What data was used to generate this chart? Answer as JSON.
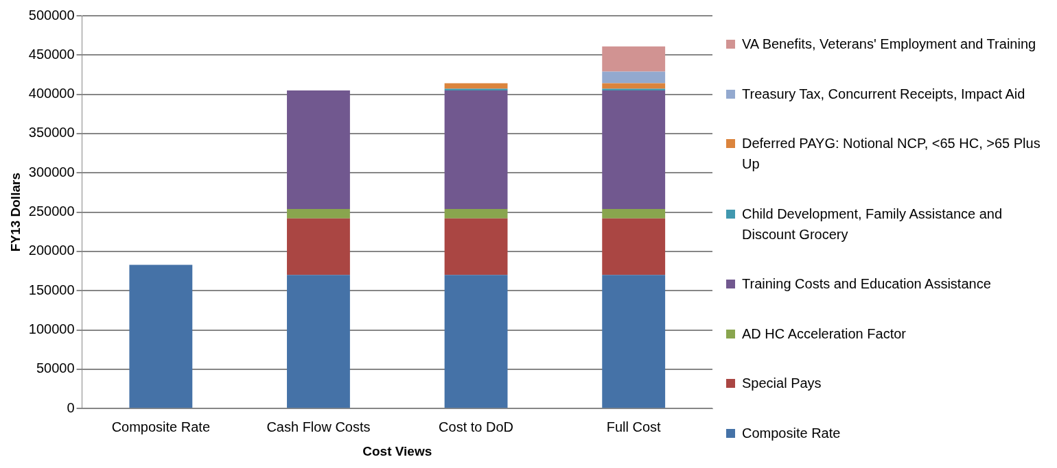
{
  "chart_data": {
    "type": "bar",
    "stacked": true,
    "xlabel": "Cost Views",
    "ylabel": "FY13 Dollars",
    "categories": [
      "Composite Rate",
      "Cash Flow Costs",
      "Cost to DoD",
      "Full Cost"
    ],
    "ylim": [
      0,
      500000
    ],
    "yticks": [
      0,
      50000,
      100000,
      150000,
      200000,
      250000,
      300000,
      350000,
      400000,
      450000,
      500000
    ],
    "grid": "y",
    "legend": "right",
    "series": [
      {
        "name": "Composite Rate",
        "color": "#4572a7",
        "values": [
          183000,
          170000,
          170000,
          170000
        ]
      },
      {
        "name": "Special Pays",
        "color": "#aa4643",
        "values": [
          null,
          72000,
          72000,
          72000
        ]
      },
      {
        "name": "AD HC Acceleration Factor",
        "color": "#89a54e",
        "values": [
          null,
          12000,
          12000,
          12000
        ]
      },
      {
        "name": "Training Costs and Education Assistance",
        "color": "#71588f",
        "values": [
          null,
          151000,
          151000,
          151000
        ]
      },
      {
        "name": "Child Development, Family Assistance and Discount Grocery",
        "color": "#4198af",
        "values": [
          null,
          null,
          2000,
          2000
        ]
      },
      {
        "name": "Deferred PAYG: Notional NCP, <65 HC, >65 Plus Up",
        "color": "#db843d",
        "values": [
          null,
          null,
          7000,
          7000
        ]
      },
      {
        "name": "Treasury Tax, Concurrent Receipts, Impact Aid",
        "color": "#93a9cf",
        "values": [
          null,
          null,
          null,
          15000
        ]
      },
      {
        "name": "VA Benefits, Veterans' Employment and Training",
        "color": "#d19392",
        "values": [
          null,
          null,
          null,
          32000
        ]
      }
    ]
  }
}
